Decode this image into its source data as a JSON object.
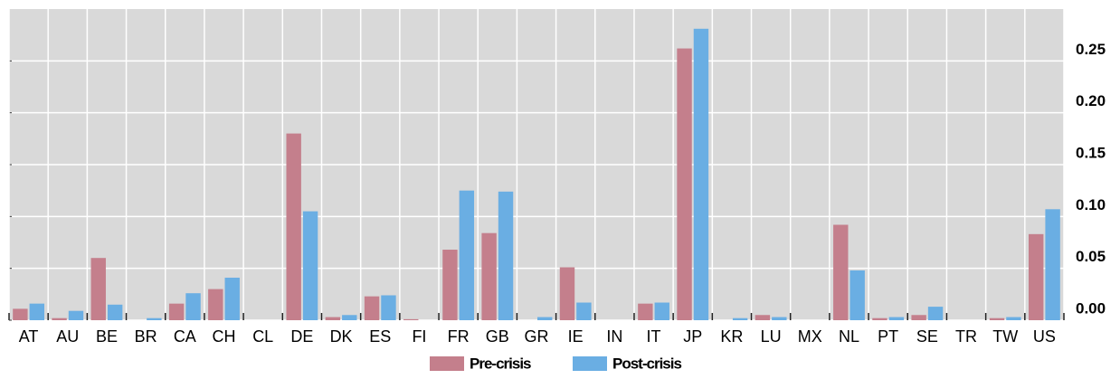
{
  "chart_data": {
    "type": "bar",
    "categories": [
      "AT",
      "AU",
      "BE",
      "BR",
      "CA",
      "CH",
      "CL",
      "DE",
      "DK",
      "ES",
      "FI",
      "FR",
      "GB",
      "GR",
      "IE",
      "IN",
      "IT",
      "JP",
      "KR",
      "LU",
      "MX",
      "NL",
      "PT",
      "SE",
      "TR",
      "TW",
      "US"
    ],
    "series": [
      {
        "name": "Pre-crisis",
        "color": "#c47f8c",
        "values": [
          0.011,
          0.002,
          0.06,
          0,
          0.016,
          0.03,
          0,
          0.18,
          0.003,
          0.023,
          0.001,
          0.068,
          0.084,
          0,
          0.051,
          0,
          0.016,
          0.262,
          0,
          0.005,
          0,
          0.092,
          0.002,
          0.005,
          0,
          0.002,
          0.083
        ]
      },
      {
        "name": "Post-crisis",
        "color": "#6aaee3",
        "values": [
          0.016,
          0.009,
          0.015,
          0.002,
          0.026,
          0.041,
          0,
          0.105,
          0.005,
          0.024,
          0,
          0.125,
          0.124,
          0.003,
          0.017,
          0,
          0.017,
          0.281,
          0.002,
          0.003,
          0,
          0.048,
          0.003,
          0.013,
          0,
          0.003,
          0.107
        ]
      }
    ],
    "ylim": [
      0,
      0.3
    ],
    "yticks": [
      {
        "value": 0,
        "label": "0.00"
      },
      0.05,
      {
        "value": 0.1,
        "label": "0.10"
      },
      0.15,
      {
        "value": 0.2,
        "label": "0.20"
      },
      0.25
    ],
    "grid": true
  }
}
